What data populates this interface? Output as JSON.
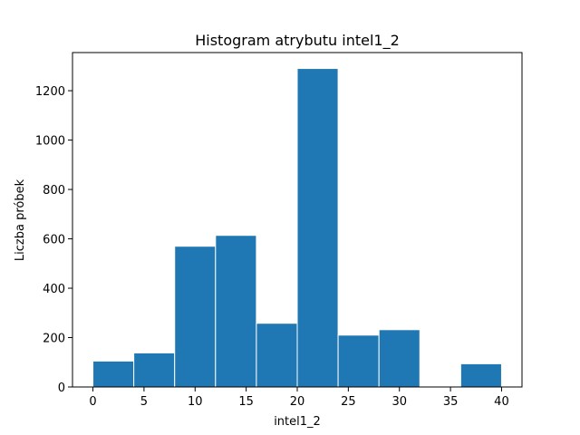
{
  "chart_data": {
    "type": "bar",
    "title": "Histogram atrybutu intel1_2",
    "xlabel": "intel1_2",
    "ylabel": "Liczba próbek",
    "bins": [
      {
        "x0": 0,
        "x1": 4,
        "count": 105
      },
      {
        "x0": 4,
        "x1": 8,
        "count": 138
      },
      {
        "x0": 8,
        "x1": 12,
        "count": 570
      },
      {
        "x0": 12,
        "x1": 16,
        "count": 614
      },
      {
        "x0": 16,
        "x1": 20,
        "count": 258
      },
      {
        "x0": 20,
        "x1": 24,
        "count": 1290
      },
      {
        "x0": 24,
        "x1": 28,
        "count": 210
      },
      {
        "x0": 28,
        "x1": 32,
        "count": 232
      },
      {
        "x0": 32,
        "x1": 36,
        "count": 0
      },
      {
        "x0": 36,
        "x1": 40,
        "count": 94
      }
    ],
    "xlim": [
      -2,
      42
    ],
    "ylim": [
      0,
      1354.5
    ],
    "xticks": [
      0,
      5,
      10,
      15,
      20,
      25,
      30,
      35,
      40
    ],
    "yticks": [
      0,
      200,
      400,
      600,
      800,
      1000,
      1200
    ],
    "bar_color": "#1f77b4",
    "edge_color": "#ffffff",
    "grid": false,
    "legend": false
  }
}
